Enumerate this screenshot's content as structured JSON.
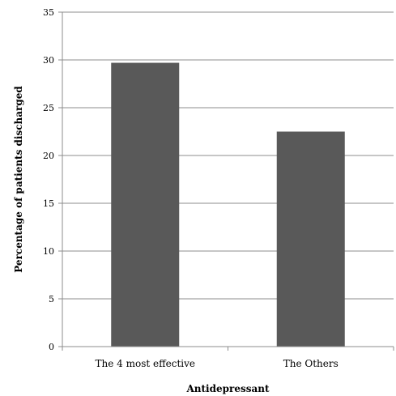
{
  "chart_data": {
    "type": "bar",
    "categories": [
      "The 4 most effective",
      "The Others"
    ],
    "values": [
      29.7,
      22.5
    ],
    "xlabel": "Antidepressant",
    "ylabel": "Percentage of patients discharged",
    "ylim": [
      0,
      35
    ],
    "yticks": [
      "0",
      "5",
      "10",
      "15",
      "20",
      "25",
      "30",
      "35"
    ],
    "grid": true,
    "legend": "none",
    "bar_color": "#595959",
    "grid_color": "#8c8c8c"
  }
}
